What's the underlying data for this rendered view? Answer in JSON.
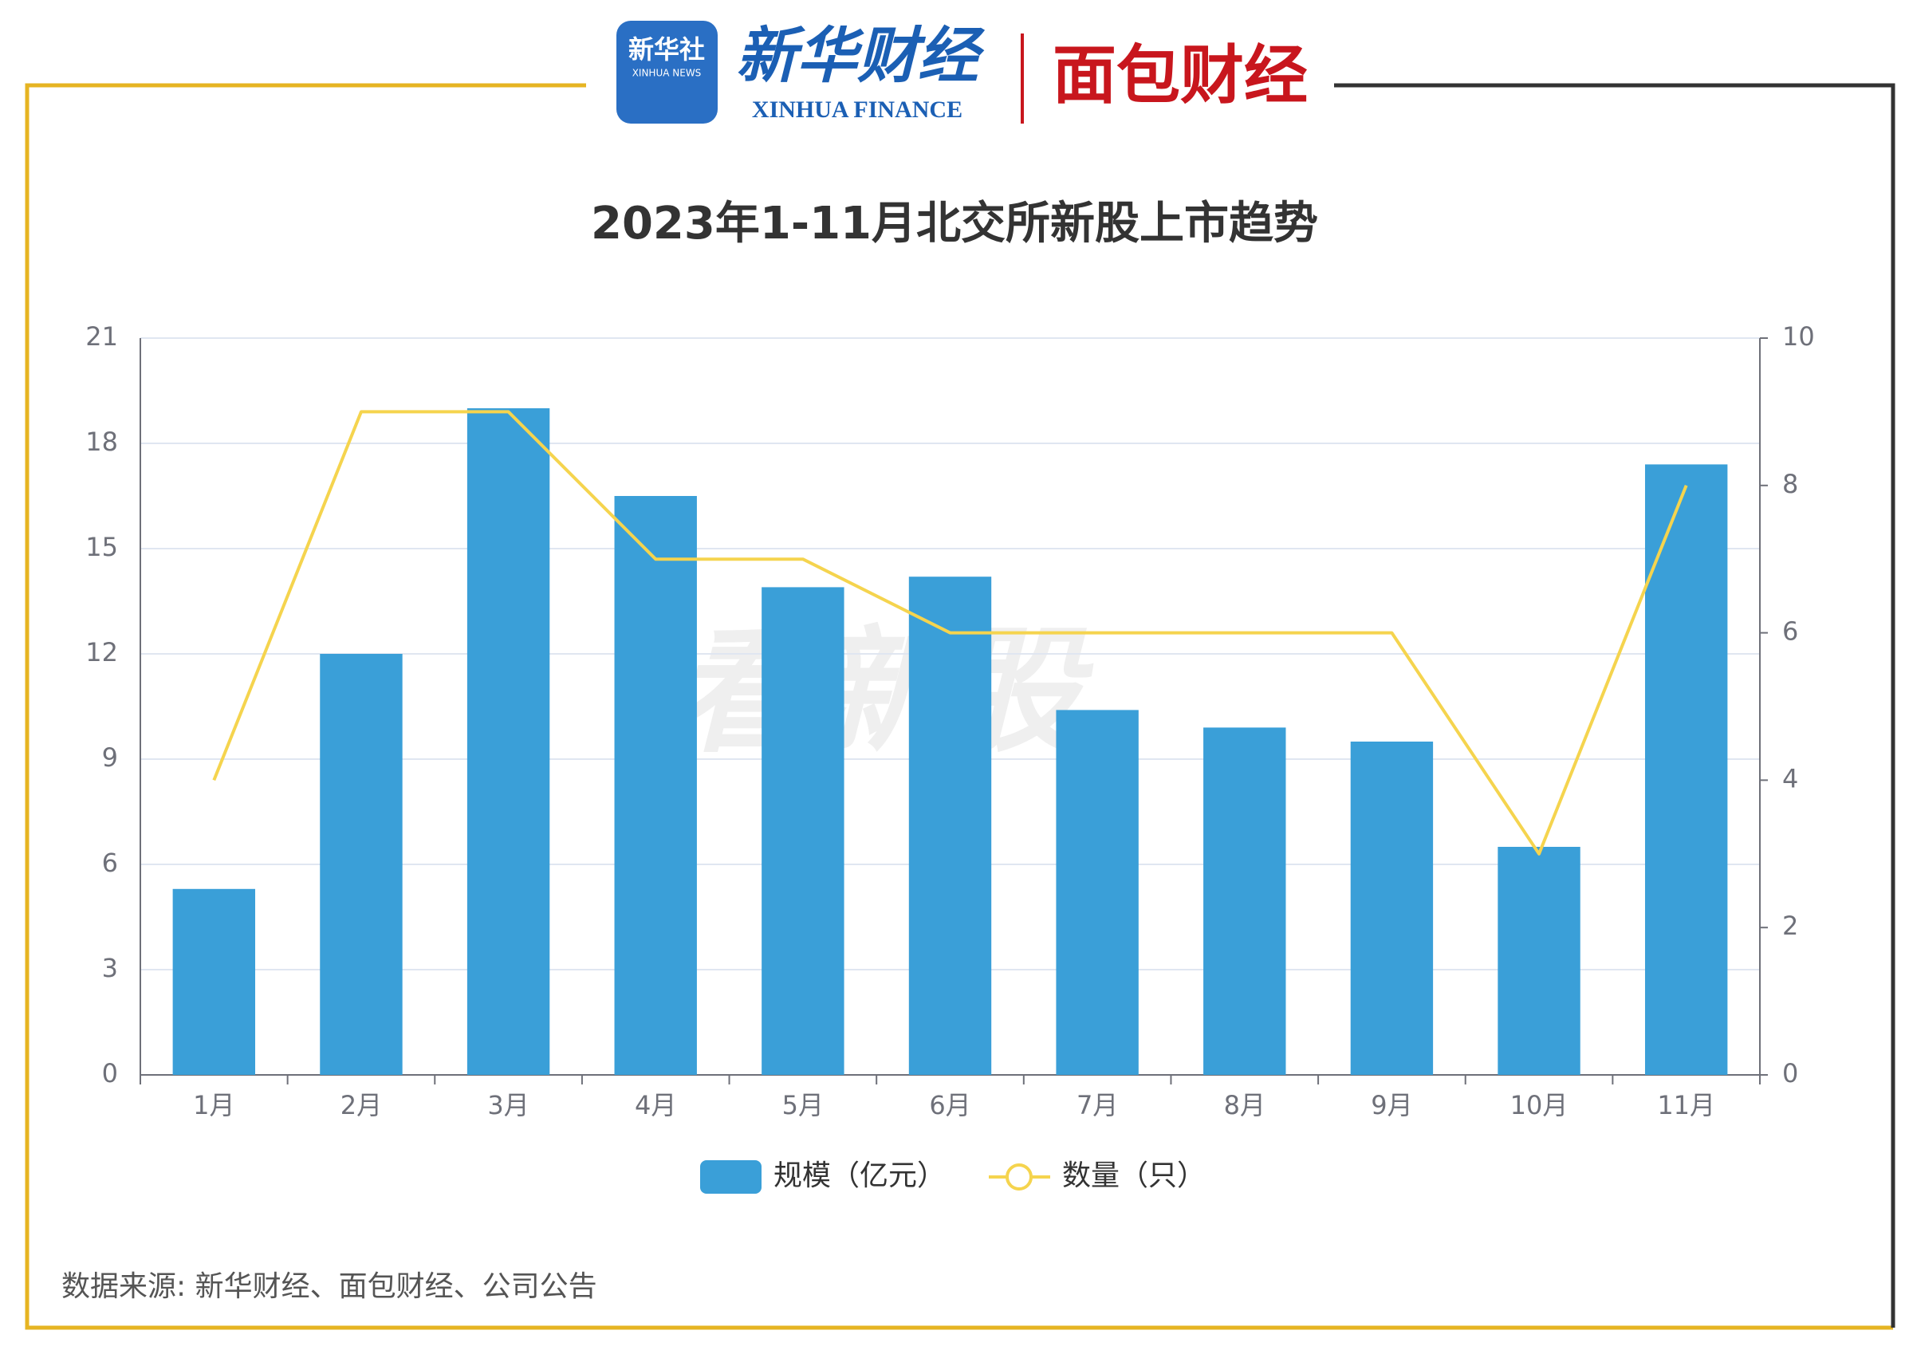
{
  "header": {
    "logo1_title": "新华社",
    "logo1_subtitle": "XINHUA NEWS",
    "logo2_title": "新华财经",
    "logo2_subtitle": "XINHUA FINANCE",
    "logo3_title": "面包财经",
    "watermark": "看新股"
  },
  "chart_data": {
    "type": "bar",
    "title": "2023年1-11月北交所新股上市趋势",
    "categories": [
      "1月",
      "2月",
      "3月",
      "4月",
      "5月",
      "6月",
      "7月",
      "8月",
      "9月",
      "10月",
      "11月"
    ],
    "series": [
      {
        "name": "规模（亿元）",
        "type": "bar",
        "color": "#3a9fd8",
        "values": [
          5.3,
          12.0,
          19.0,
          16.5,
          13.9,
          14.2,
          10.4,
          9.9,
          9.5,
          6.5,
          17.4
        ]
      },
      {
        "name": "数量（只）",
        "type": "line",
        "axis": "y2",
        "color": "#f5d44e",
        "values": [
          4,
          9,
          9,
          7,
          7,
          6,
          6,
          6,
          6,
          3,
          8
        ]
      }
    ],
    "ylim": [
      0,
      21
    ],
    "yticks": [
      0,
      3,
      6,
      9,
      12,
      15,
      18,
      21
    ],
    "y2lim": [
      0,
      10
    ],
    "y2ticks": [
      0,
      2,
      4,
      6,
      8,
      10
    ],
    "grid": true,
    "legend": "bottom",
    "source": "数据来源: 新华财经、面包财经、公司公告"
  }
}
